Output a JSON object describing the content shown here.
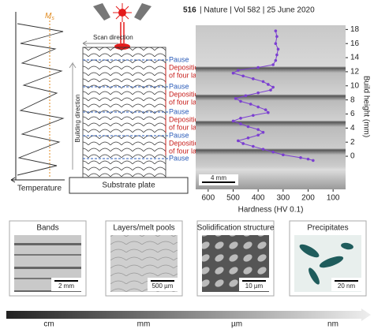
{
  "header": {
    "page": "516",
    "citation": "| Nature | Vol 582 | 25 June 2020"
  },
  "schematic": {
    "ms_main": "M",
    "ms_sub": "s",
    "temperature": "Temperature",
    "scan_direction": "Scan direction",
    "building_direction": "Building direction",
    "substrate": "Substrate plate",
    "pauses": [
      "Pause",
      "Pause",
      "Pause",
      "Pause",
      "Pause"
    ],
    "depositions": [
      [
        "Deposition",
        "of four layers"
      ],
      [
        "Deposition",
        "of four layers"
      ],
      [
        "Deposition",
        "of four layers"
      ],
      [
        "Deposition",
        "of four layers"
      ]
    ]
  },
  "chart_data": {
    "type": "line",
    "x_label": "Hardness (HV 0.1)",
    "y_label": "Build height (mm)",
    "scale_bar": "4 mm",
    "xlim": [
      650,
      50
    ],
    "xticks": [
      600,
      500,
      400,
      300,
      200,
      100
    ],
    "ylim": [
      -4.7,
      18.6
    ],
    "yticks": [
      0,
      2,
      4,
      6,
      8,
      10,
      12,
      14,
      16,
      18
    ],
    "color": "#7b3fd1",
    "x": [
      330,
      325,
      330,
      320,
      325,
      330,
      340,
      400,
      480,
      500,
      460,
      420,
      380,
      360,
      340,
      350,
      400,
      450,
      490,
      470,
      430,
      400,
      370,
      360,
      420,
      470,
      500,
      470,
      440,
      400,
      380,
      400,
      440,
      480,
      460,
      420,
      380,
      340,
      300,
      230,
      200,
      180
    ],
    "values": [
      17.8,
      17,
      16,
      15.2,
      14.4,
      13.6,
      13,
      12.6,
      12.2,
      11.8,
      11.4,
      11,
      10.6,
      10.2,
      9.8,
      9.4,
      9,
      8.6,
      8.2,
      7.8,
      7.4,
      7,
      6.6,
      6.2,
      5.8,
      5.4,
      5,
      4.6,
      4.2,
      3.8,
      3.4,
      3,
      2.6,
      2.2,
      1.8,
      1.4,
      1,
      0.6,
      0.2,
      -0.2,
      -0.4,
      -0.6
    ]
  },
  "panels": [
    {
      "title": "Bands",
      "scale": "2 mm"
    },
    {
      "title": "Layers/melt pools",
      "scale": "500 µm"
    },
    {
      "title": "Solidification structure",
      "scale": "10 µm"
    },
    {
      "title": "Precipitates",
      "scale": "20 nm"
    }
  ],
  "length_scale": [
    "cm",
    "mm",
    "µm",
    "nm"
  ]
}
